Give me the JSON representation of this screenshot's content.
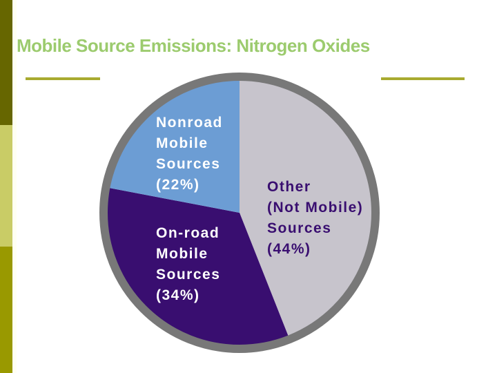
{
  "slide": {
    "title": "Mobile Source Emissions: Nitrogen Oxides",
    "theme": {
      "background": "#FFFFFF",
      "title_color": "#9CCB6E",
      "divider_line_color": "#A8AA2F",
      "sidebar_top_color": "#666600",
      "sidebar_middle_color": "#C9CC66",
      "sidebar_bottom_color": "#999900"
    }
  },
  "chart_data": {
    "type": "pie",
    "title": "",
    "legend_position": "none",
    "start_angle_deg_from_top": 0,
    "direction": "clockwise",
    "ring_color": "#787878",
    "ring_width": 12,
    "slices": [
      {
        "name": "Other (Not Mobile) Sources",
        "value_pct": 44,
        "color": "#C7C4CC",
        "label_color": "#390E70",
        "label_lines": [
          "Other",
          "(Not Mobile)",
          "Sources",
          "(44%)"
        ]
      },
      {
        "name": "On-road Mobile Sources",
        "value_pct": 34,
        "color": "#390E70",
        "label_color": "#FFFFFF",
        "label_lines": [
          "On-road",
          "Mobile",
          "Sources",
          "(34%)"
        ]
      },
      {
        "name": "Nonroad Mobile Sources",
        "value_pct": 22,
        "color": "#6C9DD4",
        "label_color": "#FFFFFF",
        "label_lines": [
          "Nonroad",
          "Mobile",
          "Sources",
          "(22%)"
        ]
      }
    ]
  }
}
